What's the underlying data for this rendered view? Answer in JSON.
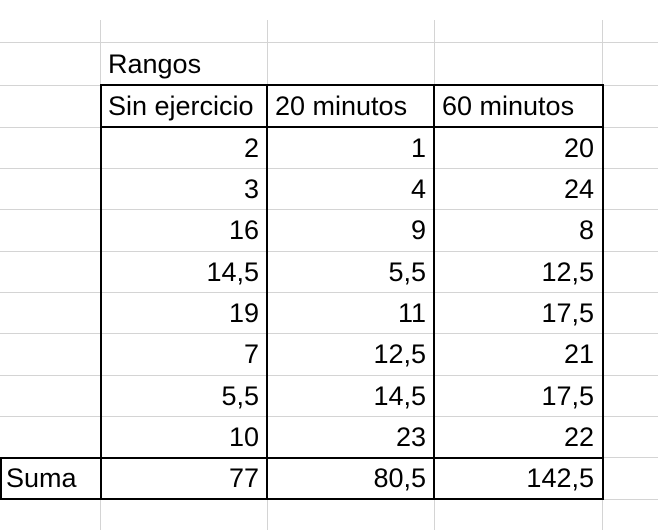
{
  "sheet": {
    "title_cell": "Rangos",
    "headers": [
      "Sin ejercicio",
      "20 minutos",
      "60 minutos"
    ],
    "rows": [
      [
        "2",
        "1",
        "20"
      ],
      [
        "3",
        "4",
        "24"
      ],
      [
        "16",
        "9",
        "8"
      ],
      [
        "14,5",
        "5,5",
        "12,5"
      ],
      [
        "19",
        "11",
        "17,5"
      ],
      [
        "7",
        "12,5",
        "21"
      ],
      [
        "5,5",
        "14,5",
        "17,5"
      ],
      [
        "10",
        "23",
        "22"
      ]
    ],
    "sum_label": "Suma",
    "sums": [
      "77",
      "80,5",
      "142,5"
    ]
  }
}
